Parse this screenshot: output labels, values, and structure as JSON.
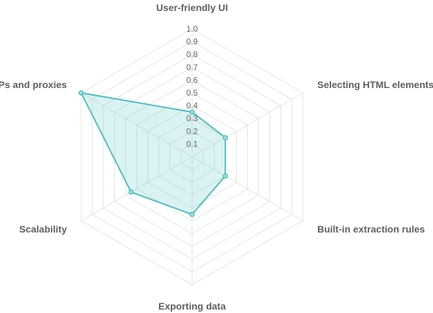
{
  "chart_data": {
    "type": "radar",
    "axes": [
      "User-friendly UI",
      "Selecting HTML elements",
      "Built-in extraction rules",
      "Exporting data",
      "Scalability",
      "IPs and proxies"
    ],
    "series": [
      {
        "name": "",
        "values": [
          0.35,
          0.3,
          0.3,
          0.45,
          0.55,
          1.0
        ]
      }
    ],
    "rlim": [
      0,
      1.0
    ],
    "ticks": [
      "0.1",
      "0.2",
      "0.3",
      "0.4",
      "0.5",
      "0.6",
      "0.7",
      "0.8",
      "0.9",
      "1.0"
    ],
    "colors": {
      "line": "#4bbfbf",
      "fill": "#4bbfbf",
      "grid": "#e3e3e3",
      "label": "#5f5f5f"
    }
  }
}
